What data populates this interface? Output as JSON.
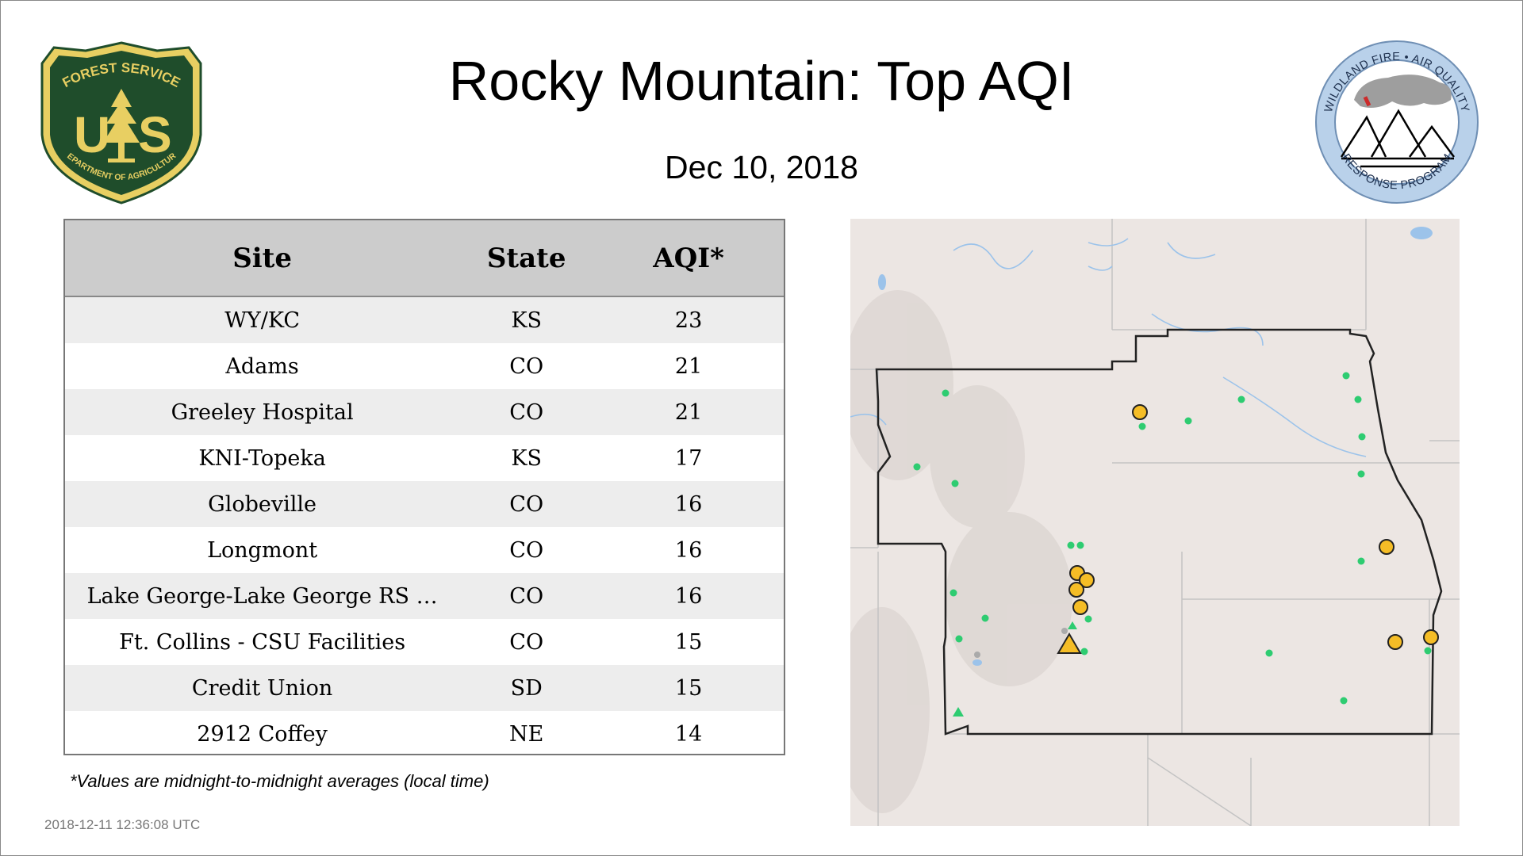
{
  "title": "Rocky Mountain: Top AQI",
  "date": "Dec 10, 2018",
  "logos": {
    "usfs": {
      "line1": "FOREST SERVICE",
      "letters": "U S",
      "line2": "DEPARTMENT OF AGRICULTURE"
    },
    "wfaq": {
      "top": "WILDLAND FIRE • AIR QUALITY",
      "bottom": "RESPONSE PROGRAM"
    }
  },
  "table": {
    "headers": [
      "Site",
      "State",
      "AQI*"
    ],
    "rows": [
      {
        "site": "WY/KC",
        "state": "KS",
        "aqi": "23"
      },
      {
        "site": "Adams",
        "state": "CO",
        "aqi": "21"
      },
      {
        "site": "Greeley Hospital",
        "state": "CO",
        "aqi": "21"
      },
      {
        "site": "KNI-Topeka",
        "state": "KS",
        "aqi": "17"
      },
      {
        "site": "Globeville",
        "state": "CO",
        "aqi": "16"
      },
      {
        "site": "Longmont",
        "state": "CO",
        "aqi": "16"
      },
      {
        "site": "Lake George-Lake George RS …",
        "state": "CO",
        "aqi": "16"
      },
      {
        "site": "Ft. Collins - CSU Facilities",
        "state": "CO",
        "aqi": "15"
      },
      {
        "site": "Credit Union",
        "state": "SD",
        "aqi": "15"
      },
      {
        "site": "2912 Coffey",
        "state": "NE",
        "aqi": "14"
      }
    ]
  },
  "footnote": "*Values are midnight-to-midnight averages (local time)",
  "timestamp": "2018-12-11 12:36:08 UTC",
  "colors": {
    "usfs_green": "#1f4d2b",
    "usfs_gold": "#e8cf62",
    "monitor_high": "#f5bd26",
    "monitor_low": "#2ecc71",
    "map_land": "#ece6e3",
    "water": "#9cc3ea"
  }
}
